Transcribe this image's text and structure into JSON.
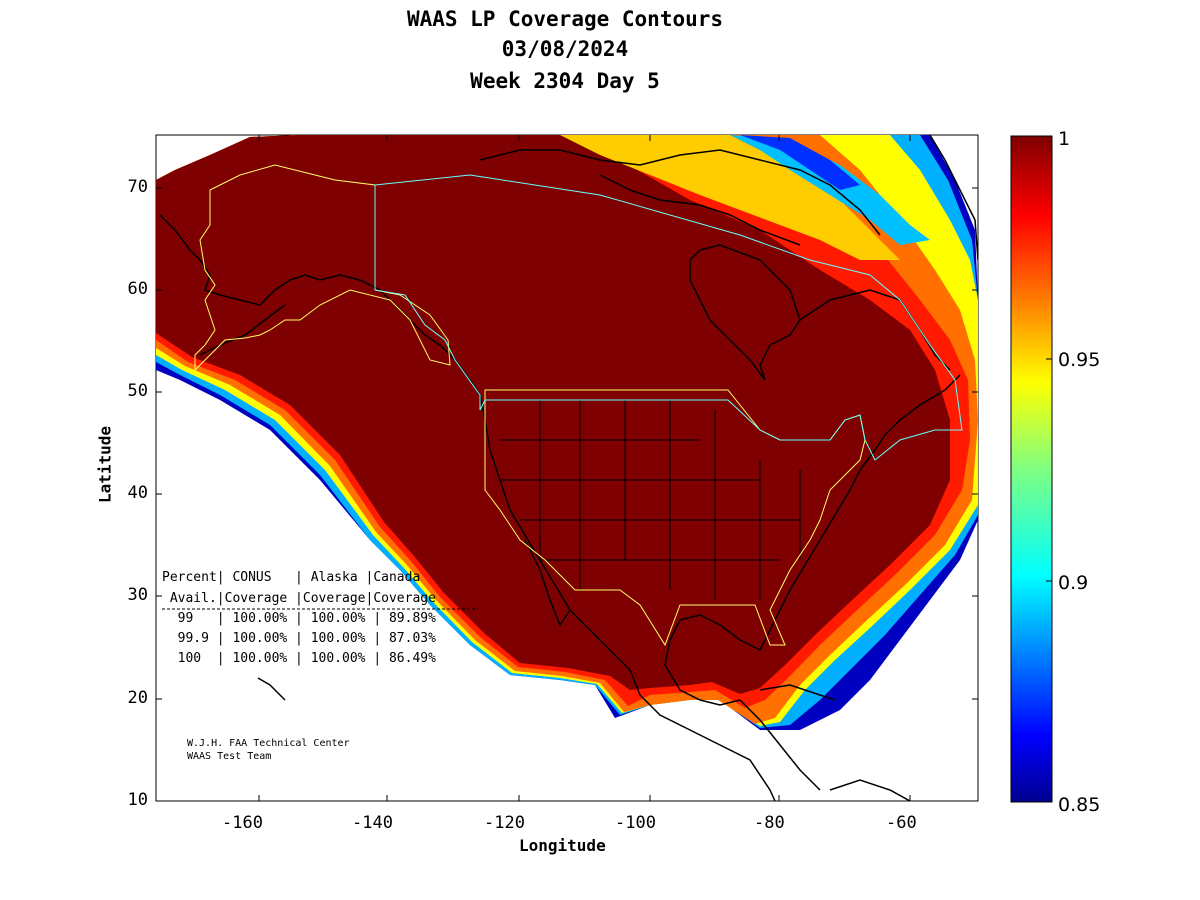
{
  "title": {
    "line1": "WAAS LP Coverage Contours",
    "line2": "03/08/2024",
    "line3": "Week 2304 Day 5"
  },
  "axes": {
    "xlabel": "Longitude",
    "ylabel": "Latitude",
    "xticks": [
      "-160",
      "-140",
      "-120",
      "-100",
      "-80",
      "-60"
    ],
    "yticks": [
      "70",
      "60",
      "50",
      "40",
      "30",
      "20",
      "10"
    ],
    "xlim": [
      -175,
      -50
    ],
    "ylim": [
      10,
      75
    ]
  },
  "colorbar": {
    "ticks": [
      "1",
      "0.95",
      "0.9",
      "0.85"
    ],
    "range": [
      0.85,
      1
    ],
    "colors": [
      "#7f0000",
      "#ff0000",
      "#ff8000",
      "#ffff00",
      "#80ff80",
      "#00ffff",
      "#0080ff",
      "#0000ff",
      "#00008f"
    ]
  },
  "table": {
    "header1": "Percent| CONUS   | Alaska |Canada",
    "header2": " Avail.|Coverage |Coverage|Coverage",
    "rows": [
      "  99   | 100.00% | 100.00% | 89.89%",
      "  99.9 | 100.00% | 100.00% | 87.03%",
      "  100  | 100.00% | 100.00% | 86.49%"
    ]
  },
  "credit": {
    "line1": "W.J.H. FAA Technical Center",
    "line2": "WAAS Test Team"
  }
}
